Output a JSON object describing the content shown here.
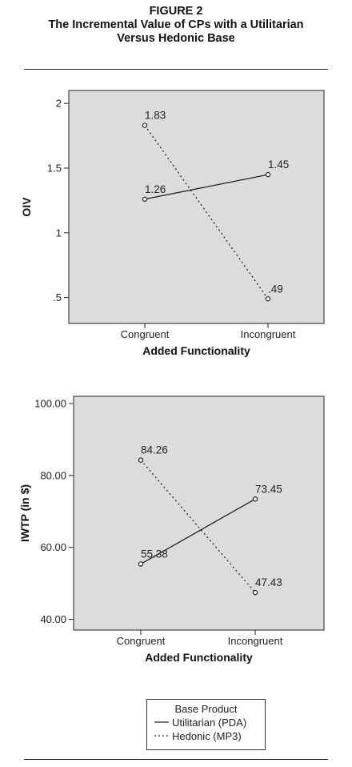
{
  "figure": {
    "label": "FIGURE 2",
    "title_line1": "The Incremental Value of CPs with a Utilitarian",
    "title_line2": "Versus Hedonic Base"
  },
  "chart_data": [
    {
      "type": "line",
      "categories": [
        "Congruent",
        "Incongruent"
      ],
      "series": [
        {
          "name": "Utilitarian (PDA)",
          "values": [
            1.26,
            1.45
          ],
          "value_labels": [
            "1.26",
            "1.45"
          ],
          "style": "solid"
        },
        {
          "name": "Hedonic (MP3)",
          "values": [
            1.83,
            0.49
          ],
          "value_labels": [
            "1.83",
            ".49"
          ],
          "style": "dotted"
        }
      ],
      "xlabel": "Added Functionality",
      "ylabel": "OIV",
      "ylim": [
        0.3,
        2.1
      ],
      "yticks": [
        0.5,
        1,
        1.5,
        2
      ],
      "ytick_labels": [
        ".5",
        "1",
        "1.5",
        "2"
      ],
      "grid": false
    },
    {
      "type": "line",
      "categories": [
        "Congruent",
        "Incongruent"
      ],
      "series": [
        {
          "name": "Utilitarian (PDA)",
          "values": [
            55.38,
            73.45
          ],
          "value_labels": [
            "55.38",
            "73.45"
          ],
          "style": "solid"
        },
        {
          "name": "Hedonic (MP3)",
          "values": [
            84.26,
            47.43
          ],
          "value_labels": [
            "84.26",
            "47.43"
          ],
          "style": "dotted"
        }
      ],
      "xlabel": "Added Functionality",
      "ylabel": "IWTP (in $)",
      "ylim": [
        37,
        102
      ],
      "yticks": [
        40,
        60,
        80,
        100
      ],
      "ytick_labels": [
        "40.00",
        "60.00",
        "80.00",
        "100.00"
      ],
      "grid": false
    }
  ],
  "legend": {
    "title": "Base Product",
    "items": [
      {
        "label": "Utilitarian (PDA)",
        "style": "solid"
      },
      {
        "label": "Hedonic (MP3)",
        "style": "dotted"
      }
    ],
    "placement": "bottom-center"
  },
  "colors": {
    "plot_background": "#dcdcdc",
    "line": "#222222"
  }
}
